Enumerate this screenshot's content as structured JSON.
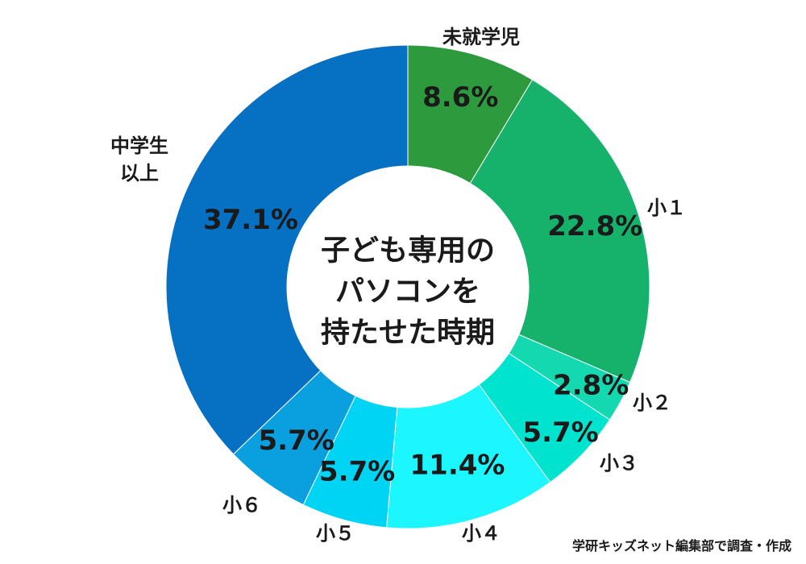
{
  "chart_data": {
    "type": "pie",
    "title": "子ども専用のパソコンを持たせた時期",
    "title_lines": [
      "子ども専用の",
      "パソコンを",
      "持たせた時期"
    ],
    "donut": true,
    "slices": [
      {
        "label": "未就学児",
        "value": 8.6,
        "value_label": "8.6%",
        "color": "#2e9a3e"
      },
      {
        "label": "小１",
        "value": 22.8,
        "value_label": "22.8%",
        "color": "#16b26c"
      },
      {
        "label": "小２",
        "value": 2.8,
        "value_label": "2.8%",
        "color": "#14d9b0"
      },
      {
        "label": "小３",
        "value": 5.7,
        "value_label": "5.7%",
        "color": "#00e3cf"
      },
      {
        "label": "小４",
        "value": 11.4,
        "value_label": "11.4%",
        "color": "#1cf7ff"
      },
      {
        "label": "小５",
        "value": 5.7,
        "value_label": "5.7%",
        "color": "#00d4f5"
      },
      {
        "label": "小６",
        "value": 5.7,
        "value_label": "5.7%",
        "color": "#0aa0e0"
      },
      {
        "label": "中学生\n以上",
        "label_lines": [
          "中学生",
          "以上"
        ],
        "value": 37.1,
        "value_label": "37.1%",
        "color": "#0670c2"
      }
    ]
  },
  "credit": "学研キッズネット編集部で調査・作成"
}
